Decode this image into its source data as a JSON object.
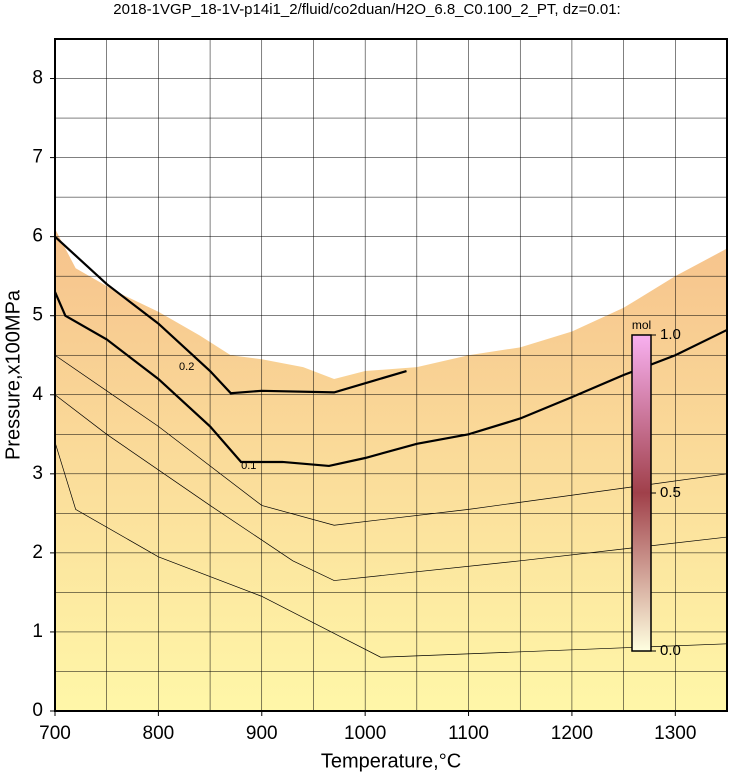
{
  "chart_data": {
    "type": "contour",
    "title": "2018-1VGP_18-1V-p14i1_2/fluid/co2duan/H2O_6.8_C0.100_2_PT, dz=0.01:",
    "x_label": "Temperature,°C",
    "y_label": "Pressure,x100MPa",
    "xlim": [
      700,
      1350
    ],
    "ylim": [
      0,
      8.5
    ],
    "xticks": [
      700,
      800,
      900,
      1000,
      1100,
      1200,
      1300
    ],
    "yticks": [
      0,
      1,
      2,
      3,
      4,
      5,
      6,
      7,
      8
    ],
    "x_gridlines": [
      700,
      750,
      800,
      850,
      900,
      950,
      1000,
      1050,
      1100,
      1150,
      1200,
      1250,
      1300,
      1350
    ],
    "y_gridlines": [
      0.5,
      1,
      1.5,
      2,
      2.5,
      3,
      3.5,
      4,
      4.5,
      5,
      5.5,
      6,
      6.5,
      7,
      7.5,
      8
    ],
    "field": {
      "color_low": "#fff7a8",
      "color_high": "#f6c28c",
      "x": [
        700,
        720,
        760,
        800,
        840,
        870,
        900,
        940,
        970,
        1000,
        1050,
        1100,
        1150,
        1200,
        1250,
        1300,
        1350
      ],
      "y": [
        6.1,
        5.6,
        5.3,
        5.05,
        4.75,
        4.5,
        4.45,
        4.35,
        4.2,
        4.3,
        4.35,
        4.5,
        4.6,
        4.8,
        5.1,
        5.5,
        5.85
      ]
    },
    "contours": [
      {
        "level": 0.2,
        "label": "0.2",
        "label_x": 820,
        "label_y": 4.35,
        "width": 2.2,
        "x": [
          700,
          750,
          800,
          850,
          870,
          900,
          970,
          1040
        ],
        "y": [
          6.0,
          5.4,
          4.9,
          4.3,
          4.02,
          4.05,
          4.03,
          4.3
        ]
      },
      {
        "level": 0.1,
        "label": "0.1",
        "label_x": 880,
        "label_y": 3.1,
        "width": 2.2,
        "x": [
          700,
          710,
          750,
          800,
          850,
          880,
          920,
          965,
          1000,
          1050,
          1100,
          1150,
          1200,
          1250,
          1300,
          1350
        ],
        "y": [
          5.3,
          5.0,
          4.7,
          4.2,
          3.6,
          3.15,
          3.15,
          3.1,
          3.2,
          3.38,
          3.5,
          3.7,
          3.97,
          4.25,
          4.5,
          4.82
        ]
      },
      {
        "width": 0.7,
        "x": [
          700,
          800,
          900,
          970,
          1100,
          1350
        ],
        "y": [
          4.5,
          3.6,
          2.6,
          2.35,
          2.55,
          3.0
        ]
      },
      {
        "width": 0.7,
        "x": [
          700,
          750,
          850,
          930,
          970,
          1150,
          1350
        ],
        "y": [
          4.0,
          3.5,
          2.6,
          1.9,
          1.65,
          1.9,
          2.2
        ]
      },
      {
        "width": 0.7,
        "x": [
          700,
          720,
          800,
          900,
          1015,
          1350
        ],
        "y": [
          3.4,
          2.55,
          1.95,
          1.45,
          0.68,
          0.85
        ]
      }
    ],
    "colorbar": {
      "title": "mol",
      "lim": [
        0,
        1
      ],
      "ticks": [
        {
          "value": 0,
          "label": "0.0"
        },
        {
          "value": 0.5,
          "label": "0.5"
        },
        {
          "value": 1,
          "label": "1.0"
        }
      ]
    }
  }
}
